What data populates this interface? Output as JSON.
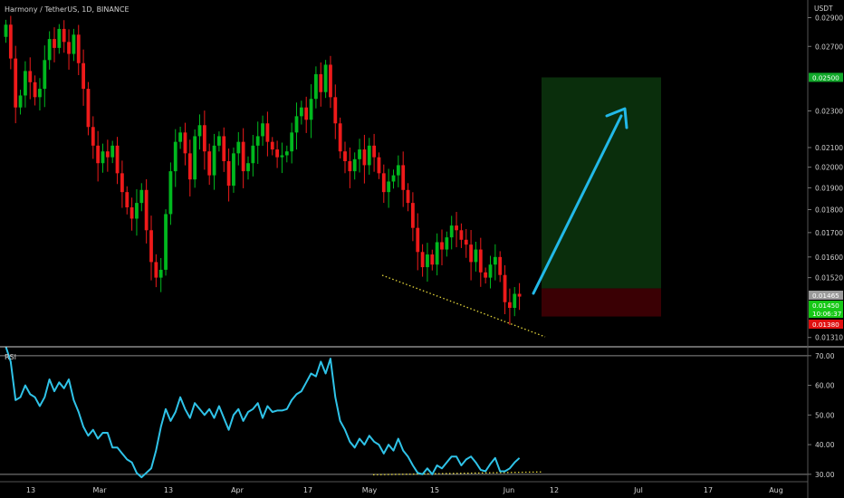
{
  "header": {
    "title": "Harmony / TetherUS, 1D, BINANCE",
    "currency": "USDT"
  },
  "colors": {
    "background": "#000000",
    "up": "#00b81e",
    "down": "#ee1a1a",
    "rsi_line": "#2fc3e8",
    "arrow": "#22b9e8",
    "target_zone": "#0a2e0c",
    "stop_zone": "#3a0004",
    "trend_dots": "#e3d43a",
    "axis_text": "#d0d0d0",
    "divider": "#cfcfcf"
  },
  "chart_data": [
    {
      "type": "candlestick",
      "scale": "log",
      "price_axis": {
        "ticks": [
          "0.02900",
          "0.02700",
          "0.02300",
          "0.02100",
          "0.02000",
          "0.01900",
          "0.01800",
          "0.01700",
          "0.01600",
          "0.01520",
          "0.01310"
        ],
        "range": [
          0.0128,
          0.0303
        ]
      },
      "time_axis": {
        "ticks": [
          "13",
          "Mar",
          "13",
          "Apr",
          "17",
          "May",
          "15",
          "Jun",
          "12",
          "Jul",
          "17",
          "Aug"
        ]
      },
      "price_labels": [
        {
          "text": "0.02500",
          "value": 0.025,
          "kind": "target"
        },
        {
          "text": "0.01465",
          "value": 0.01465,
          "kind": "last"
        },
        {
          "text": "0.01450",
          "value": 0.0145,
          "kind": "current"
        },
        {
          "text": "10:06:37",
          "value": 0.0145,
          "kind": "countdown"
        },
        {
          "text": "0.01380",
          "value": 0.0138,
          "kind": "stop"
        }
      ],
      "target_zone": {
        "price_from": 0.0148,
        "price_to": 0.025
      },
      "stop_zone": {
        "price_from": 0.0138,
        "price_to": 0.0148
      },
      "closes": [
        0.0285,
        0.0262,
        0.0232,
        0.0239,
        0.0254,
        0.0247,
        0.0238,
        0.0243,
        0.0261,
        0.0275,
        0.0269,
        0.0282,
        0.0273,
        0.0265,
        0.0278,
        0.0259,
        0.0243,
        0.0221,
        0.0211,
        0.0202,
        0.0208,
        0.0205,
        0.0211,
        0.0197,
        0.0188,
        0.0181,
        0.0176,
        0.0183,
        0.0189,
        0.0171,
        0.0158,
        0.0152,
        0.0155,
        0.0178,
        0.0198,
        0.0213,
        0.0218,
        0.0207,
        0.0194,
        0.0216,
        0.0222,
        0.0208,
        0.0196,
        0.0211,
        0.0216,
        0.0203,
        0.0191,
        0.0207,
        0.0213,
        0.0198,
        0.0202,
        0.0211,
        0.0216,
        0.0223,
        0.0213,
        0.0209,
        0.0205,
        0.0206,
        0.0208,
        0.0218,
        0.0227,
        0.0232,
        0.0225,
        0.0237,
        0.0252,
        0.0241,
        0.0258,
        0.0238,
        0.0223,
        0.0208,
        0.0203,
        0.0198,
        0.0204,
        0.0209,
        0.0201,
        0.0211,
        0.0205,
        0.0197,
        0.0188,
        0.0193,
        0.0196,
        0.0201,
        0.0189,
        0.0183,
        0.0172,
        0.0162,
        0.0156,
        0.0161,
        0.0157,
        0.0166,
        0.0163,
        0.0168,
        0.0173,
        0.0171,
        0.0167,
        0.0165,
        0.0158,
        0.0163,
        0.0154,
        0.0152,
        0.0157,
        0.016,
        0.0153,
        0.0143,
        0.0141,
        0.0146,
        0.0145
      ]
    },
    {
      "type": "line",
      "title": "RSI",
      "y_ticks": [
        "70.00",
        "60.00",
        "50.00",
        "40.00",
        "30.00"
      ],
      "ylim": [
        27.5,
        73
      ],
      "reference_lines": [
        70,
        30
      ],
      "values": [
        73,
        68,
        55,
        56,
        60,
        57,
        56,
        53,
        56,
        62,
        58,
        61,
        59,
        62,
        55,
        51,
        46,
        43,
        45,
        42,
        44,
        44,
        39,
        39,
        37,
        35,
        34,
        30.5,
        29,
        30.5,
        32,
        38,
        46,
        52,
        48,
        51,
        56,
        52,
        49,
        54,
        52,
        50,
        52,
        49,
        53,
        49,
        45,
        50,
        52,
        48,
        51,
        52,
        54,
        49,
        53,
        51,
        51.5,
        51.5,
        52,
        55,
        57,
        58,
        61,
        64,
        63,
        68,
        64,
        69,
        56,
        48,
        45,
        41,
        39,
        42,
        40,
        43,
        41,
        40,
        37,
        40,
        38,
        42,
        38,
        36,
        33,
        30.5,
        30,
        32,
        30,
        33,
        32,
        34,
        36,
        36,
        33,
        35,
        36,
        34,
        31.5,
        31,
        33.5,
        35.5,
        31,
        31,
        32,
        34,
        35.5
      ]
    }
  ]
}
